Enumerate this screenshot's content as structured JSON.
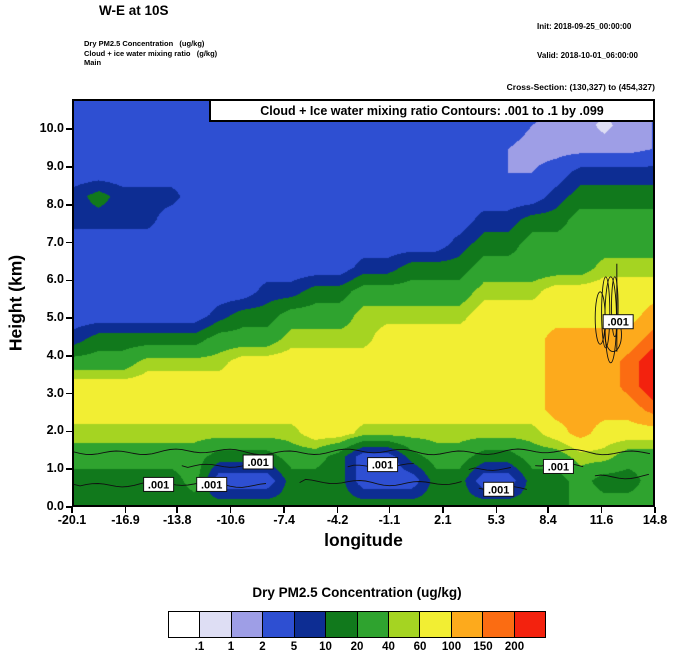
{
  "header": {
    "title": "W-E at 10S",
    "init_label": "Init: 2018-09-25_00:00:00",
    "valid_label": "Valid: 2018-10-01_06:00:00",
    "product_lines": [
      "Dry PM2.5 Concentration   (ug/kg)",
      "Cloud + ice water mixing ratio   (g/kg)",
      "Main"
    ],
    "cross_section": "Cross-Section: (130,327) to (454,327)"
  },
  "plot": {
    "banner": "Cloud + Ice water mixing ratio Contours: .001 to .1 by .099",
    "xlabel": "longitude",
    "ylabel": "Height (km)"
  },
  "legend": {
    "title": "Dry PM2.5 Concentration  (ug/kg)",
    "labels": [
      ".1",
      "1",
      "2",
      "5",
      "10",
      "20",
      "40",
      "60",
      "100",
      "150",
      "200"
    ]
  },
  "chart_data": {
    "type": "heatmap",
    "title": "W-E at 10S",
    "xlabel": "longitude",
    "ylabel": "Height (km)",
    "units": "ug/kg",
    "x_ticks": [
      "-20.1",
      "-16.9",
      "-13.8",
      "-10.6",
      "-7.4",
      "-4.2",
      "-1.1",
      "2.1",
      "5.3",
      "8.4",
      "11.6",
      "14.8"
    ],
    "y_ticks": [
      "0.0",
      "1.0",
      "2.0",
      "3.0",
      "4.0",
      "5.0",
      "6.0",
      "7.0",
      "8.0",
      "9.0",
      "10.0"
    ],
    "lon_range": [
      -20.1,
      14.8
    ],
    "height_range": [
      0,
      10.8
    ],
    "levels": [
      0.1,
      1,
      2,
      5,
      10,
      20,
      40,
      60,
      100,
      150,
      200
    ],
    "colors": [
      "#ffffff",
      "#dedef4",
      "#9e9ee6",
      "#2e4fd2",
      "#0d2d93",
      "#11791c",
      "#2fa32f",
      "#a5d422",
      "#f2ee33",
      "#fdaa1c",
      "#fb6c12",
      "#f3220e"
    ],
    "grid": {
      "lons": [
        -20.1,
        -18.65,
        -17.19,
        -15.74,
        -14.28,
        -12.83,
        -11.37,
        -9.92,
        -8.47,
        -7.01,
        -5.56,
        -4.1,
        -2.65,
        -1.19,
        0.26,
        1.72,
        3.17,
        4.63,
        6.08,
        7.53,
        8.99,
        10.44,
        11.9,
        13.35,
        14.8
      ],
      "heights": [
        10.8,
        10.16,
        9.53,
        8.89,
        8.26,
        7.62,
        6.99,
        6.35,
        5.72,
        5.08,
        4.45,
        3.81,
        3.18,
        2.54,
        1.91,
        1.27,
        0.64,
        0
      ],
      "values": [
        [
          3,
          3,
          3,
          3,
          3,
          3,
          3,
          3,
          3,
          3,
          3,
          3,
          3,
          3,
          3,
          3,
          3,
          3,
          3,
          3,
          3,
          2,
          1.5,
          1.5,
          2
        ],
        [
          3,
          3,
          3,
          3,
          3,
          3,
          3,
          3,
          3,
          3,
          3,
          3,
          3,
          3,
          3,
          3,
          3,
          3,
          3,
          2,
          1.5,
          1.5,
          0.8,
          1.5,
          2
        ],
        [
          3,
          3,
          3,
          3,
          3,
          3,
          3,
          3,
          3,
          3,
          3,
          3,
          3,
          3,
          3,
          3,
          3,
          2,
          2,
          1.5,
          1.5,
          1.5,
          1.5,
          1.5,
          2
        ],
        [
          3,
          3,
          3,
          3,
          3,
          3,
          3,
          3,
          3,
          3,
          3,
          3,
          3,
          3,
          3,
          3,
          3,
          3,
          2,
          2,
          3,
          7,
          7,
          7,
          7
        ],
        [
          7,
          14,
          7,
          7,
          7,
          3,
          3,
          3,
          3,
          3,
          3,
          3,
          3,
          3,
          3,
          3,
          3,
          3,
          3,
          3,
          7,
          14,
          14,
          14,
          14
        ],
        [
          7,
          7,
          7,
          7,
          3,
          3,
          3,
          3,
          3,
          3,
          3,
          3,
          3,
          3,
          3,
          3,
          3,
          7,
          7,
          14,
          14,
          28,
          28,
          28,
          28
        ],
        [
          3,
          3,
          3,
          3,
          3,
          3,
          3,
          3,
          3,
          3,
          3,
          3,
          3,
          3,
          3,
          3,
          7,
          14,
          14,
          28,
          28,
          28,
          28,
          28,
          28
        ],
        [
          3,
          3,
          3,
          3,
          3,
          3,
          3,
          3,
          3,
          3,
          3,
          3,
          7,
          7,
          14,
          14,
          14,
          28,
          28,
          28,
          28,
          28,
          50,
          50,
          50
        ],
        [
          3,
          3,
          3,
          3,
          3,
          3,
          3,
          3,
          7,
          7,
          14,
          14,
          28,
          28,
          28,
          28,
          28,
          50,
          50,
          50,
          80,
          80,
          80,
          80,
          80
        ],
        [
          3,
          3,
          3,
          3,
          3,
          3,
          7,
          14,
          14,
          28,
          28,
          28,
          50,
          50,
          50,
          50,
          50,
          80,
          80,
          80,
          80,
          80,
          80,
          80,
          120
        ],
        [
          7,
          14,
          14,
          14,
          14,
          14,
          28,
          28,
          28,
          50,
          50,
          50,
          50,
          80,
          80,
          80,
          80,
          80,
          80,
          80,
          120,
          120,
          120,
          120,
          170
        ],
        [
          28,
          28,
          28,
          50,
          50,
          50,
          50,
          80,
          80,
          80,
          80,
          80,
          80,
          80,
          80,
          80,
          80,
          80,
          80,
          80,
          120,
          120,
          120,
          170,
          250
        ],
        [
          80,
          80,
          80,
          80,
          80,
          80,
          80,
          80,
          80,
          80,
          80,
          80,
          80,
          80,
          80,
          80,
          80,
          80,
          80,
          80,
          120,
          120,
          120,
          170,
          250
        ],
        [
          80,
          80,
          80,
          80,
          80,
          80,
          80,
          80,
          80,
          80,
          80,
          80,
          80,
          80,
          80,
          80,
          80,
          80,
          80,
          80,
          120,
          120,
          120,
          120,
          170
        ],
        [
          50,
          50,
          50,
          50,
          50,
          50,
          50,
          50,
          50,
          50,
          80,
          80,
          50,
          50,
          50,
          50,
          50,
          50,
          50,
          50,
          80,
          120,
          80,
          80,
          80
        ],
        [
          28,
          28,
          28,
          28,
          28,
          28,
          14,
          14,
          14,
          28,
          28,
          14,
          3,
          3,
          14,
          28,
          28,
          14,
          14,
          28,
          28,
          50,
          50,
          28,
          28
        ],
        [
          14,
          14,
          14,
          14,
          14,
          28,
          3,
          3,
          3,
          14,
          14,
          14,
          3,
          3,
          3,
          14,
          14,
          3,
          3,
          14,
          14,
          28,
          14,
          14,
          28
        ],
        [
          14,
          14,
          14,
          14,
          14,
          14,
          14,
          14,
          14,
          14,
          14,
          14,
          14,
          14,
          14,
          14,
          14,
          14,
          14,
          14,
          14,
          28,
          28,
          28,
          28
        ]
      ]
    },
    "contours": {
      "interval_text": ".001 to .1 by .099",
      "segments": [
        {
          "x1": -20.1,
          "x2": 14.8,
          "h": 1.42
        },
        {
          "x1": -20.1,
          "x2": -8.5,
          "h": 0.55
        },
        {
          "x1": -6.5,
          "x2": 3.5,
          "h": 0.6
        },
        {
          "x1": 4.3,
          "x2": 7.3,
          "h": 0.45
        },
        {
          "x1": -13.6,
          "x2": -9.4,
          "h": 1.05
        },
        {
          "x1": -3.6,
          "x2": 0.6,
          "h": 1.02
        },
        {
          "x1": 7.7,
          "x2": 10.6,
          "h": 1.05
        },
        {
          "x1": 11.3,
          "x2": 14.8,
          "h": 0.78
        },
        {
          "x1": 3.7,
          "x2": 6.5,
          "h": 0.95
        }
      ],
      "ellipses": [
        {
          "lon": 11.62,
          "h": 5.0,
          "rlon": 0.3,
          "rh": 0.7
        },
        {
          "lon": 11.95,
          "h": 5.15,
          "rlon": 0.25,
          "rh": 0.95
        },
        {
          "lon": 12.25,
          "h": 4.95,
          "rlon": 0.35,
          "rh": 1.15
        },
        {
          "lon": 12.5,
          "h": 5.3,
          "rlon": 0.2,
          "rh": 0.8
        },
        {
          "lon": 12.4,
          "h": 4.55,
          "rlon": 0.5,
          "rh": 0.45
        }
      ],
      "vline": {
        "lon": 12.62,
        "h1": 4.1,
        "h2": 6.45
      },
      "labels": [
        {
          "text": ".001",
          "lon": -15.0,
          "h": 0.55
        },
        {
          "text": ".001",
          "lon": -11.8,
          "h": 0.55
        },
        {
          "text": ".001",
          "lon": -9.0,
          "h": 1.15
        },
        {
          "text": ".001",
          "lon": -1.5,
          "h": 1.08
        },
        {
          "text": ".001",
          "lon": 5.5,
          "h": 0.42
        },
        {
          "text": ".001",
          "lon": 9.1,
          "h": 1.03
        },
        {
          "text": ".001",
          "lon": 12.7,
          "h": 4.9
        }
      ]
    }
  }
}
